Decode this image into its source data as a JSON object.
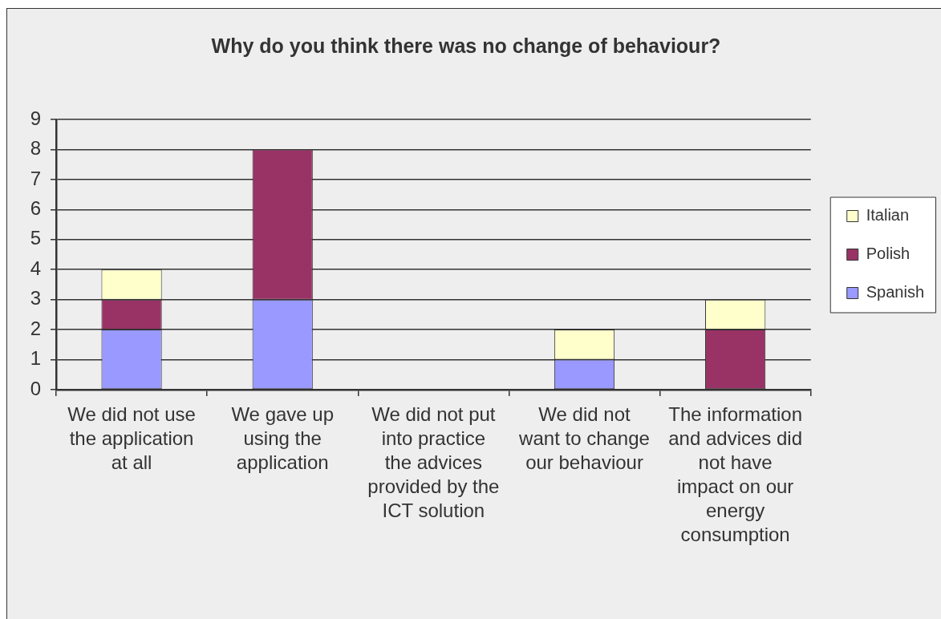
{
  "chart_data": {
    "type": "bar",
    "title": "Why do you think there was no change of behaviour?",
    "categories": [
      "We did not use the application at all",
      "We gave up using the application",
      "We did not put into practice the advices provided by the ICT solution",
      "We did not want to change our behaviour",
      "The information and advices did not have impact on our energy consumption"
    ],
    "series": [
      {
        "name": "Spanish",
        "color": "#9999ff",
        "values": [
          2,
          3,
          0,
          1,
          0
        ]
      },
      {
        "name": "Polish",
        "color": "#993366",
        "values": [
          1,
          5,
          0,
          0,
          2
        ]
      },
      {
        "name": "Italian",
        "color": "#ffffcc",
        "values": [
          1,
          0,
          0,
          1,
          1
        ]
      }
    ],
    "stacked": true,
    "ylim": [
      0,
      9
    ],
    "yticks": [
      0,
      1,
      2,
      3,
      4,
      5,
      6,
      7,
      8,
      9
    ],
    "grid": "y",
    "legend": "right"
  }
}
